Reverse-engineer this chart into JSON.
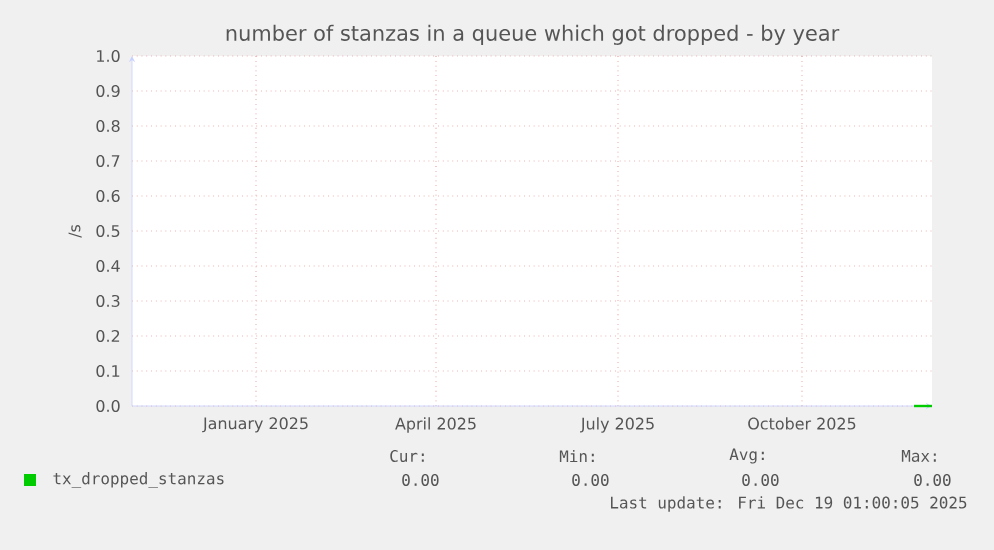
{
  "chart_data": {
    "type": "line",
    "title": "number of stanzas in a queue which got dropped - by year",
    "ylabel": "/s",
    "xlim": [
      "2024-11-14",
      "2025-12-19"
    ],
    "xticks": [
      {
        "value": "2025-01-15",
        "label": "January 2025"
      },
      {
        "value": "2025-04-15",
        "label": "April 2025"
      },
      {
        "value": "2025-07-15",
        "label": "July 2025"
      },
      {
        "value": "2025-10-15",
        "label": "October 2025"
      }
    ],
    "ylim": [
      0,
      1
    ],
    "yticks": [
      {
        "value": 0,
        "label": "0.0"
      },
      {
        "value": 0.1,
        "label": "0.1"
      },
      {
        "value": 0.2,
        "label": "0.2"
      },
      {
        "value": 0.3,
        "label": "0.3"
      },
      {
        "value": 0.4,
        "label": "0.4"
      },
      {
        "value": 0.5,
        "label": "0.5"
      },
      {
        "value": 0.6,
        "label": "0.6"
      },
      {
        "value": 0.7,
        "label": "0.7"
      },
      {
        "value": 0.8,
        "label": "0.8"
      },
      {
        "value": 0.9,
        "label": "0.9"
      },
      {
        "value": 1,
        "label": "1.0"
      }
    ],
    "grid": true,
    "legend": "bottom left",
    "series": [
      {
        "name": "tx_dropped_stanzas",
        "color": "#00cc00",
        "x": [
          "2025-12-10",
          "2025-12-19"
        ],
        "values": [
          0,
          0
        ]
      }
    ],
    "annotations": [
      "Cur:",
      "Min:",
      "Avg:",
      "Max:",
      "0.00",
      "0.00",
      "0.00",
      "0.00",
      "Last update: Fri Dec 19 01:00:05 2025"
    ]
  }
}
